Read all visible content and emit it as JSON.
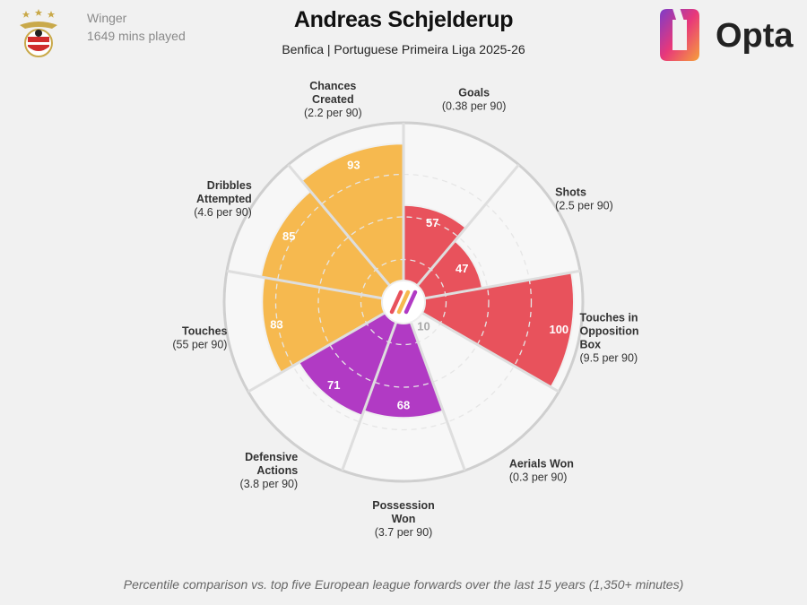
{
  "player": {
    "name": "Andreas Schjelderup",
    "subtitle": "Benfica | Portuguese Primeira Liga 2025-26",
    "position": "Winger",
    "minutes": "1649 mins played"
  },
  "brand": {
    "logo_text": "Opta"
  },
  "footer": {
    "note": "Percentile comparison vs. top five European league forwards over the last 15 years (1,350+ minutes)"
  },
  "colors": {
    "attacking": "#e8525c",
    "possession": "#f6b94f",
    "defending": "#b13ac4",
    "background": "#f1f1f1",
    "ring": "#cccccc"
  },
  "chart_data": {
    "type": "radar",
    "scale": [
      0,
      100
    ],
    "metrics": [
      {
        "name": "Goals",
        "per90": "(0.38 per 90)",
        "percentile": 57,
        "group": "attacking"
      },
      {
        "name": "Shots",
        "per90": "(2.5 per 90)",
        "percentile": 47,
        "group": "attacking"
      },
      {
        "name": "Touches in Opposition Box",
        "per90": "(9.5 per 90)",
        "percentile": 100,
        "group": "attacking"
      },
      {
        "name": "Aerials Won",
        "per90": "(0.3 per 90)",
        "percentile": 10,
        "group": "defending"
      },
      {
        "name": "Possession Won",
        "per90": "(3.7 per 90)",
        "percentile": 68,
        "group": "defending"
      },
      {
        "name": "Defensive Actions",
        "per90": "(3.8 per 90)",
        "percentile": 71,
        "group": "defending"
      },
      {
        "name": "Touches",
        "per90": "(55 per 90)",
        "percentile": 83,
        "group": "possession"
      },
      {
        "name": "Dribbles Attempted",
        "per90": "(4.6 per 90)",
        "percentile": 85,
        "group": "possession"
      },
      {
        "name": "Chances Created",
        "per90": "(2.2 per 90)",
        "percentile": 93,
        "group": "possession"
      }
    ]
  }
}
